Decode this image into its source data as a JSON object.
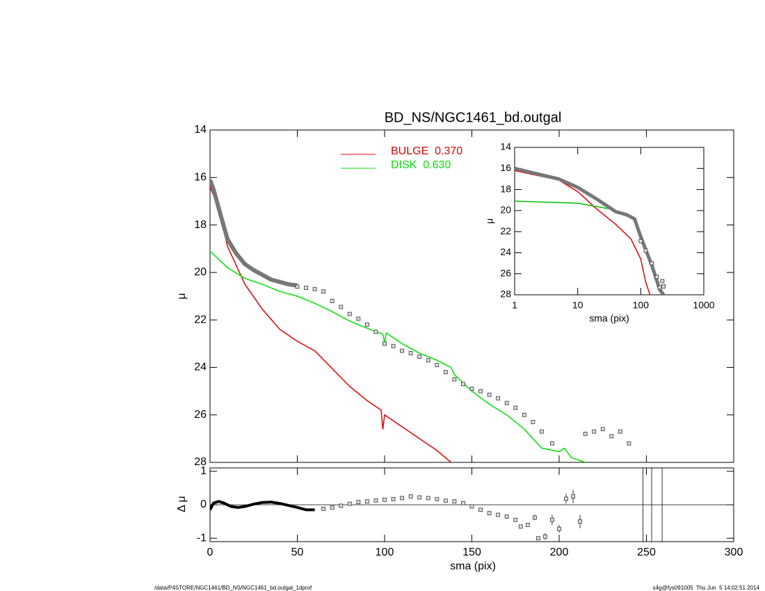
{
  "chart_data": [
    {
      "type": "line",
      "title": "BD_NS/NGC1461_bd.outgal",
      "ylabel": "μ",
      "xlim": [
        0,
        300
      ],
      "ylim": [
        28,
        14
      ],
      "xticks": [
        0,
        50,
        100,
        150,
        200,
        250,
        300
      ],
      "yticks": [
        14,
        16,
        18,
        20,
        22,
        24,
        26,
        28
      ],
      "xtick_labels": false,
      "series": [
        {
          "name": "BULGE  0.370",
          "color": "#e00000",
          "style": "line",
          "x": [
            0,
            5,
            10,
            20,
            30,
            40,
            50,
            60,
            70,
            80,
            90,
            98,
            99,
            100,
            110,
            120,
            130,
            138
          ],
          "values": [
            16.4,
            17.3,
            18.9,
            20.5,
            21.55,
            22.4,
            22.9,
            23.3,
            24.05,
            24.8,
            25.4,
            25.8,
            26.6,
            26.0,
            26.5,
            27.0,
            27.5,
            28.0
          ]
        },
        {
          "name": "DISK  0.630",
          "color": "#00e000",
          "style": "line",
          "x": [
            0,
            10,
            20,
            30,
            40,
            50,
            60,
            70,
            80,
            90,
            99,
            100,
            101,
            110,
            120,
            130,
            138,
            140,
            150,
            160,
            170,
            180,
            190,
            200,
            203,
            207,
            215
          ],
          "values": [
            19.1,
            19.8,
            20.25,
            20.5,
            20.8,
            21.0,
            21.3,
            21.65,
            22.05,
            22.35,
            22.6,
            22.95,
            22.55,
            23.0,
            23.4,
            23.7,
            24.0,
            24.3,
            25.0,
            25.55,
            26.0,
            26.6,
            27.4,
            27.55,
            27.4,
            27.8,
            28.0
          ]
        },
        {
          "color": "#777777",
          "style": "line",
          "width": 6,
          "x": [
            0,
            2,
            5,
            10,
            15,
            20,
            25,
            30,
            35,
            40,
            45,
            50
          ],
          "values": [
            16.1,
            16.5,
            17.3,
            18.6,
            19.2,
            19.65,
            19.9,
            20.1,
            20.3,
            20.4,
            20.5,
            20.55
          ]
        },
        {
          "color": "#333333",
          "style": "points",
          "x": [
            50,
            55,
            60,
            65,
            70,
            75,
            80,
            85,
            90,
            95,
            100,
            105,
            110,
            115,
            120,
            125,
            130,
            135,
            140,
            145,
            150,
            155,
            160,
            165,
            170,
            175,
            180,
            185,
            190,
            196,
            215,
            220,
            225,
            230,
            235,
            240
          ],
          "values": [
            20.6,
            20.65,
            20.7,
            20.8,
            21.2,
            21.45,
            21.75,
            21.95,
            22.2,
            22.5,
            23.0,
            23.1,
            23.3,
            23.4,
            23.55,
            23.7,
            23.9,
            24.2,
            24.5,
            24.7,
            24.9,
            25.0,
            25.15,
            25.3,
            25.5,
            25.7,
            26.0,
            26.3,
            26.7,
            27.2,
            26.8,
            26.7,
            26.6,
            26.9,
            26.7,
            27.2
          ]
        }
      ]
    },
    {
      "type": "line",
      "xlabel": "sma (pix)",
      "ylabel": "Δ μ",
      "xlim": [
        0,
        300
      ],
      "ylim": [
        -1.1,
        1.1
      ],
      "xticks": [
        0,
        50,
        100,
        150,
        200,
        250,
        300
      ],
      "yticks": [
        -1,
        0,
        1
      ],
      "hline": 0,
      "x_lines": [
        248,
        253,
        259
      ],
      "series": [
        {
          "color": "#000000",
          "style": "line",
          "width": 4,
          "x": [
            0,
            2,
            5,
            8,
            12,
            16,
            20,
            25,
            30,
            35,
            40,
            45,
            50,
            55,
            60
          ],
          "values": [
            -0.15,
            0.05,
            0.1,
            0.05,
            -0.05,
            -0.08,
            -0.05,
            0.02,
            0.07,
            0.08,
            0.04,
            -0.02,
            -0.08,
            -0.15,
            -0.15
          ]
        },
        {
          "color": "#333333",
          "style": "points",
          "x": [
            65,
            70,
            75,
            80,
            85,
            90,
            95,
            100,
            105,
            110,
            115,
            120,
            125,
            130,
            135,
            140,
            145,
            150,
            155,
            160,
            165,
            170,
            175,
            178,
            182,
            186,
            188,
            192,
            196,
            200,
            204,
            208,
            212
          ],
          "values": [
            -0.12,
            -0.08,
            -0.03,
            0.03,
            0.08,
            0.1,
            0.13,
            0.15,
            0.17,
            0.2,
            0.25,
            0.22,
            0.2,
            0.17,
            0.12,
            0.1,
            0.05,
            -0.05,
            -0.15,
            -0.25,
            -0.3,
            -0.35,
            -0.45,
            -0.65,
            -0.6,
            -0.38,
            -1.0,
            -0.95,
            -0.45,
            -0.72,
            0.18,
            0.25,
            -0.5
          ],
          "errors": [
            null,
            null,
            null,
            null,
            null,
            null,
            null,
            null,
            null,
            null,
            null,
            null,
            null,
            null,
            null,
            null,
            null,
            null,
            null,
            null,
            null,
            null,
            null,
            null,
            null,
            0.08,
            null,
            0.1,
            0.15,
            0.12,
            0.15,
            0.2,
            0.2
          ]
        }
      ]
    },
    {
      "type": "line",
      "xlabel": "sma (pix)",
      "ylabel": "μ",
      "xscale": "log",
      "xlim": [
        1,
        1000
      ],
      "ylim": [
        28,
        14
      ],
      "xticks": [
        1,
        10,
        100,
        1000
      ],
      "yticks": [
        14,
        16,
        18,
        20,
        22,
        24,
        26,
        28
      ],
      "series": [
        {
          "color": "#e00000",
          "style": "line",
          "x": [
            1,
            5,
            10,
            20,
            40,
            70,
            100,
            120,
            140
          ],
          "values": [
            16.2,
            17.1,
            18.2,
            19.85,
            21.3,
            22.7,
            24.6,
            26.8,
            28.0
          ]
        },
        {
          "color": "#00c000",
          "style": "line",
          "x": [
            1,
            10,
            30,
            60,
            80,
            100,
            130,
            200,
            220
          ],
          "values": [
            19.1,
            19.3,
            19.8,
            20.3,
            20.9,
            22.6,
            24.5,
            27.5,
            28.0
          ]
        },
        {
          "color": "#777777",
          "style": "line",
          "width": 5,
          "x": [
            1,
            5,
            10,
            20,
            40,
            60,
            80,
            100,
            150,
            200,
            230
          ],
          "values": [
            16.0,
            17.0,
            17.8,
            18.9,
            20.1,
            20.4,
            20.8,
            22.5,
            25.2,
            27.5,
            28.0
          ]
        },
        {
          "color": "#333333",
          "style": "points",
          "x": [
            100,
            120,
            150,
            180,
            200,
            220,
            230
          ],
          "values": [
            22.9,
            23.8,
            25.0,
            26.3,
            27.3,
            26.7,
            27.2
          ]
        }
      ]
    }
  ],
  "footer": {
    "left": "/data/P4STORE/NGC1461/BD_NS/NGC1461_bd.outgal_1dprof",
    "right": "s4g@fys091005  Thu Jun  5 14:02:51 2014"
  }
}
